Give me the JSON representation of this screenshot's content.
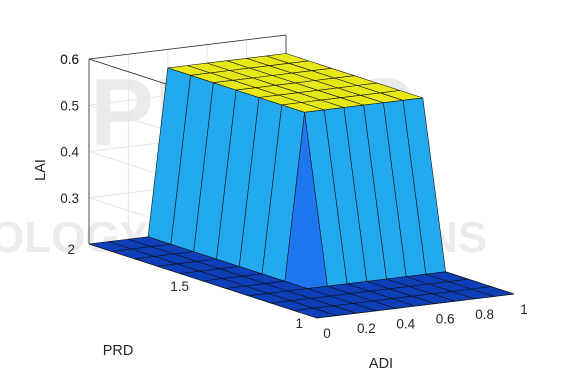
{
  "chart_data": {
    "type": "surface",
    "xlabel": "ADI",
    "ylabel": "PRD",
    "zlabel": "LAI",
    "xlim": [
      0,
      1
    ],
    "ylim": [
      1,
      2
    ],
    "zlim": [
      0.2,
      0.6
    ],
    "xticks": [
      "0",
      "0.2",
      "0.4",
      "0.6",
      "0.8",
      "1"
    ],
    "yticks": [
      "1",
      "1.5",
      "2"
    ],
    "zticks": [
      "0.3",
      "0.4",
      "0.5",
      "0.6"
    ],
    "x": [
      0,
      0.1,
      0.2,
      0.3,
      0.4,
      0.5,
      0.6,
      0.7,
      0.8,
      0.9,
      1.0
    ],
    "y": [
      1,
      1.1,
      1.2,
      1.3,
      1.4,
      1.5,
      1.6,
      1.7,
      1.8,
      1.9,
      2.0
    ],
    "z_low": 0.2,
    "z_mid": 0.22,
    "z_high": 0.56,
    "transition_adi": [
      0.3,
      0.4
    ],
    "region": "LAI jumps from about 0.2 to about 0.56 between ADI 0.3 and 0.4 for PRD above about 1.3; for PRD below that it stays near 0.2",
    "colormap": [
      "#0d3fb8",
      "#1e76f0",
      "#22a9f0",
      "#3ad2e6",
      "#9ef03a",
      "#e9e817"
    ],
    "grid": true
  },
  "watermark": {
    "line1": "PRESS",
    "line2": "OLOGY PUBLICATIONS"
  }
}
